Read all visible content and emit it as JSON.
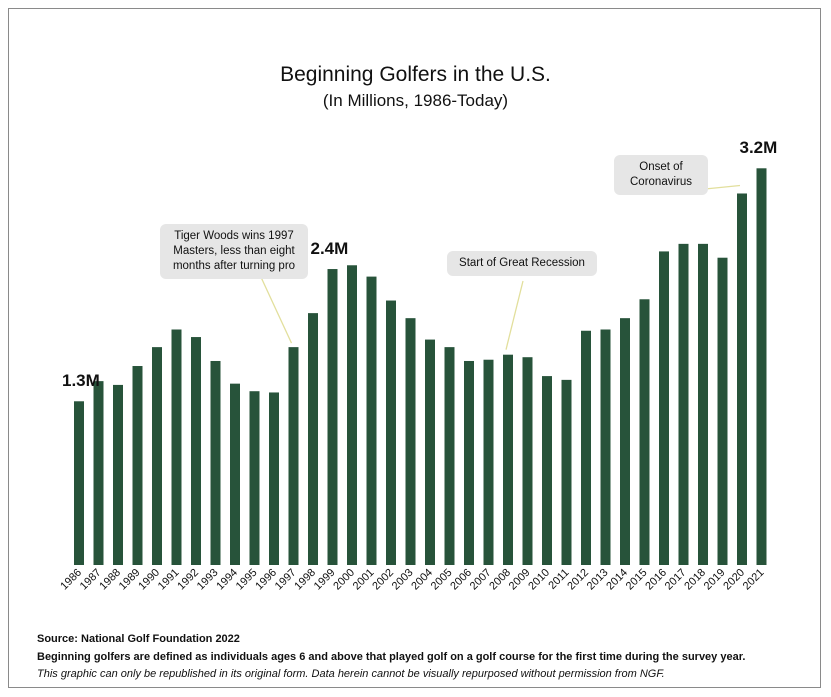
{
  "chart_data": {
    "type": "bar",
    "title": "Beginning Golfers in the U.S.",
    "subtitle": "(In Millions, 1986-Today)",
    "categories": [
      "1986",
      "1987",
      "1988",
      "1989",
      "1990",
      "1991",
      "1992",
      "1993",
      "1994",
      "1995",
      "1996",
      "1997",
      "1998",
      "1999",
      "2000",
      "2001",
      "2002",
      "2003",
      "2004",
      "2005",
      "2006",
      "2007",
      "2008",
      "2009",
      "2010",
      "2011",
      "2012",
      "2013",
      "2014",
      "2015",
      "2016",
      "2017",
      "2018",
      "2019",
      "2020",
      "2021"
    ],
    "values": [
      1.3,
      1.46,
      1.43,
      1.58,
      1.73,
      1.87,
      1.81,
      1.62,
      1.44,
      1.38,
      1.37,
      1.73,
      2.0,
      2.35,
      2.38,
      2.29,
      2.1,
      1.96,
      1.79,
      1.73,
      1.62,
      1.63,
      1.67,
      1.65,
      1.5,
      1.47,
      1.86,
      1.87,
      1.96,
      2.11,
      2.49,
      2.55,
      2.55,
      2.44,
      2.95,
      3.15
    ],
    "ylim": [
      0,
      3.2
    ],
    "color": "#27533a",
    "grid": false,
    "value_labels": [
      {
        "category": "1986",
        "text": "1.3M"
      },
      {
        "category": "1999",
        "text": "2.4M"
      },
      {
        "category": "2021",
        "text": "3.2M"
      }
    ],
    "annotations": [
      {
        "category": "1997",
        "text": "Tiger Woods wins 1997 Masters, less than eight months after turning pro"
      },
      {
        "category": "2008",
        "text": "Start of Great Recession"
      },
      {
        "category": "2020",
        "text": "Onset of Coronavirus"
      }
    ]
  },
  "footer": {
    "source": "Source: National Golf Foundation 2022",
    "definition": "Beginning golfers are defined as individuals ages 6 and above that played golf on a golf course for the first time during the survey year.",
    "note": "This graphic can only be republished in its original form. Data herein cannot be visually repurposed without permission from NGF."
  }
}
